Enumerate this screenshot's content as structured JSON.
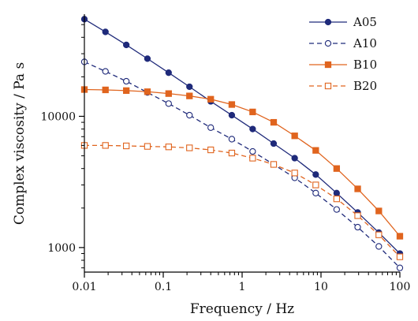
{
  "chart_data": {
    "type": "line",
    "xlabel": "Frequency / Hz",
    "ylabel": "Complex viscosity / Pa s",
    "x_scale": "log",
    "y_scale": "log",
    "xlim": [
      0.01,
      100
    ],
    "ylim": [
      650,
      60000
    ],
    "x_ticks": [
      {
        "value": 0.01,
        "label": "0.01"
      },
      {
        "value": 0.1,
        "label": "0.1"
      },
      {
        "value": 1,
        "label": "1"
      },
      {
        "value": 10,
        "label": "10"
      },
      {
        "value": 100,
        "label": "100"
      }
    ],
    "y_ticks": [
      {
        "value": 1000,
        "label": "1000"
      },
      {
        "value": 10000,
        "label": "10000"
      }
    ],
    "grid": false,
    "legend_position": "top-right",
    "x": [
      0.01,
      0.0185,
      0.034,
      0.063,
      0.117,
      0.215,
      0.4,
      0.74,
      1.36,
      2.51,
      4.64,
      8.58,
      15.8,
      29.2,
      54.1,
      100
    ],
    "series": [
      {
        "name": "A05",
        "color": "#1f2a7a",
        "marker": "filled-circle",
        "line": "solid",
        "values": [
          55000,
          44000,
          35000,
          27500,
          21500,
          16800,
          13000,
          10200,
          8000,
          6200,
          4800,
          3600,
          2600,
          1850,
          1300,
          900
        ]
      },
      {
        "name": "A10",
        "color": "#1f2a7a",
        "marker": "open-circle",
        "line": "dashed",
        "values": [
          26000,
          22000,
          18500,
          15200,
          12500,
          10200,
          8200,
          6700,
          5400,
          4300,
          3400,
          2600,
          1950,
          1430,
          1020,
          700
        ]
      },
      {
        "name": "B10",
        "color": "#e0641e",
        "marker": "filled-square",
        "line": "solid",
        "values": [
          16000,
          15900,
          15700,
          15400,
          14900,
          14300,
          13500,
          12300,
          10800,
          9000,
          7100,
          5500,
          4000,
          2800,
          1900,
          1220
        ]
      },
      {
        "name": "B20",
        "color": "#e0641e",
        "marker": "open-square",
        "line": "dashed",
        "values": [
          6000,
          6000,
          5950,
          5900,
          5850,
          5750,
          5550,
          5250,
          4800,
          4300,
          3700,
          3000,
          2350,
          1750,
          1250,
          850
        ]
      }
    ]
  }
}
